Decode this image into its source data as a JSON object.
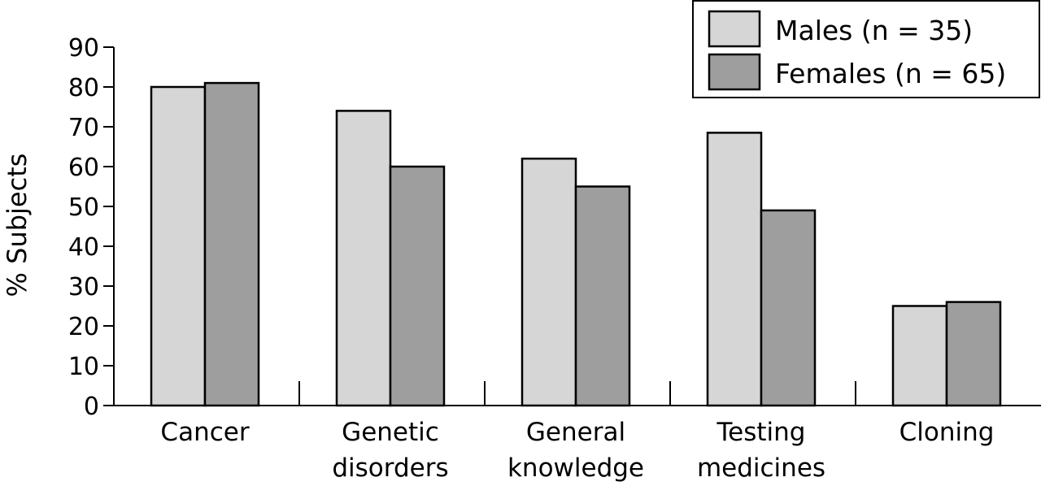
{
  "chart_data": {
    "type": "bar",
    "title": "",
    "xlabel": "",
    "ylabel": "% Subjects",
    "ylim": [
      0,
      90
    ],
    "yticks": [
      0,
      10,
      20,
      30,
      40,
      50,
      60,
      70,
      80,
      90
    ],
    "grid": false,
    "legend": "top-right",
    "categories": [
      [
        "Cancer"
      ],
      [
        "Genetic",
        "disorders"
      ],
      [
        "General",
        "knowledge"
      ],
      [
        "Testing",
        "medicines"
      ],
      [
        "Cloning"
      ]
    ],
    "series": [
      {
        "name": "Males (n = 35)",
        "color": "#d6d6d6",
        "values": [
          80,
          74,
          62,
          68.5,
          25
        ]
      },
      {
        "name": "Females (n = 65)",
        "color": "#9e9e9e",
        "values": [
          81,
          60,
          55,
          49,
          26
        ]
      }
    ]
  }
}
